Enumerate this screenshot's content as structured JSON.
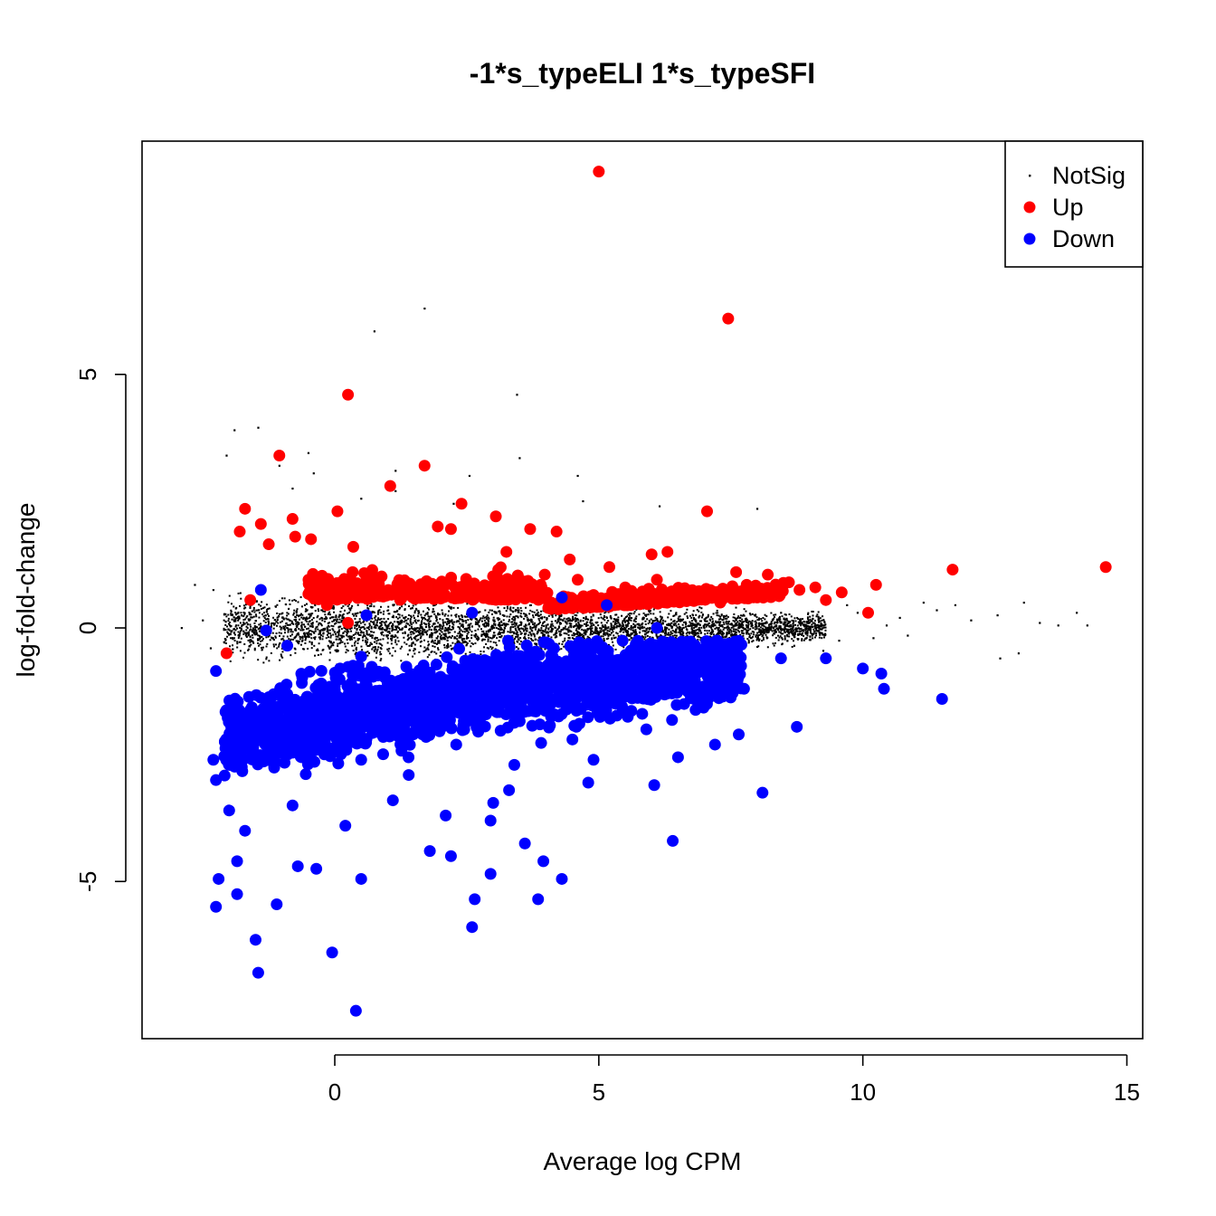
{
  "chart_data": {
    "type": "scatter",
    "title": "-1*s_typeELI 1*s_typeSFI",
    "xlabel": "Average log CPM",
    "ylabel": "log-fold-change",
    "xlim": [
      -3.65,
      15.3
    ],
    "ylim": [
      -8.1,
      9.6
    ],
    "x_ticks": [
      0,
      5,
      10,
      15
    ],
    "y_ticks": [
      -5,
      0,
      5
    ],
    "x_tick_labels": [
      "0",
      "5",
      "10",
      "15"
    ],
    "y_tick_labels": [
      "-5",
      "0",
      "5"
    ],
    "legend_position": "top-right",
    "series": [
      {
        "name": "NotSig",
        "color": "#000000",
        "marker": "small-dot",
        "points": [
          [
            1.7,
            6.3
          ],
          [
            0.75,
            5.85
          ],
          [
            3.45,
            4.6
          ],
          [
            -1.9,
            3.9
          ],
          [
            -1.45,
            3.95
          ],
          [
            -2.05,
            3.4
          ],
          [
            -0.5,
            3.45
          ],
          [
            3.5,
            3.35
          ],
          [
            -1.05,
            3.2
          ],
          [
            -0.4,
            3.05
          ],
          [
            1.15,
            3.1
          ],
          [
            2.55,
            3.0
          ],
          [
            4.6,
            3.0
          ],
          [
            -0.8,
            2.75
          ],
          [
            1.15,
            2.7
          ],
          [
            0.5,
            2.55
          ],
          [
            2.25,
            2.45
          ],
          [
            4.7,
            2.5
          ],
          [
            6.15,
            2.4
          ],
          [
            8.0,
            2.35
          ],
          [
            -2.9,
            0.0
          ],
          [
            -2.65,
            0.85
          ],
          [
            -2.3,
            0.75
          ],
          [
            -2.5,
            0.15
          ],
          [
            -2.35,
            -0.4
          ],
          [
            12.6,
            -0.6
          ],
          [
            12.95,
            -0.5
          ],
          [
            13.05,
            0.5
          ],
          [
            13.35,
            0.1
          ],
          [
            13.7,
            0.05
          ],
          [
            14.05,
            0.3
          ],
          [
            14.25,
            0.05
          ],
          [
            12.55,
            0.25
          ],
          [
            12.05,
            0.15
          ],
          [
            11.75,
            0.45
          ],
          [
            11.4,
            0.35
          ],
          [
            11.15,
            0.5
          ],
          [
            10.7,
            0.2
          ],
          [
            10.85,
            -0.15
          ],
          [
            10.45,
            0.05
          ],
          [
            10.2,
            -0.2
          ],
          [
            9.9,
            0.3
          ],
          [
            9.55,
            -0.25
          ],
          [
            9.7,
            0.45
          ],
          [
            9.25,
            -0.45
          ],
          [
            8.95,
            0.1
          ],
          [
            8.7,
            -0.35
          ],
          [
            8.45,
            0.3
          ],
          [
            8.2,
            -0.05
          ],
          [
            7.95,
            0.25
          ]
        ]
      },
      {
        "name": "Up",
        "color": "#ff0000",
        "marker": "filled-circle",
        "points": [
          [
            5.0,
            9.0
          ],
          [
            7.45,
            6.1
          ],
          [
            0.25,
            4.6
          ],
          [
            -1.05,
            3.4
          ],
          [
            1.7,
            3.2
          ],
          [
            1.05,
            2.8
          ],
          [
            2.4,
            2.45
          ],
          [
            0.05,
            2.3
          ],
          [
            -1.7,
            2.35
          ],
          [
            7.05,
            2.3
          ],
          [
            -1.4,
            2.05
          ],
          [
            -0.8,
            2.15
          ],
          [
            3.05,
            2.2
          ],
          [
            1.95,
            2.0
          ],
          [
            2.2,
            1.95
          ],
          [
            3.7,
            1.95
          ],
          [
            -1.8,
            1.9
          ],
          [
            4.2,
            1.9
          ],
          [
            -0.45,
            1.75
          ],
          [
            -0.75,
            1.8
          ],
          [
            -1.25,
            1.65
          ],
          [
            0.35,
            1.6
          ],
          [
            3.25,
            1.5
          ],
          [
            6.0,
            1.45
          ],
          [
            6.3,
            1.5
          ],
          [
            4.45,
            1.35
          ],
          [
            5.2,
            1.2
          ],
          [
            11.7,
            1.15
          ],
          [
            14.6,
            1.2
          ],
          [
            10.25,
            0.85
          ],
          [
            9.6,
            0.7
          ],
          [
            9.1,
            0.8
          ],
          [
            8.6,
            0.9
          ],
          [
            8.2,
            1.05
          ],
          [
            7.6,
            1.1
          ],
          [
            -2.05,
            -0.5
          ],
          [
            10.1,
            0.3
          ],
          [
            9.3,
            0.55
          ],
          [
            8.8,
            0.75
          ],
          [
            0.25,
            0.1
          ],
          [
            -1.6,
            0.55
          ],
          [
            6.85,
            0.7
          ],
          [
            6.45,
            0.6
          ],
          [
            5.8,
            0.55
          ],
          [
            5.5,
            0.8
          ],
          [
            4.9,
            0.65
          ],
          [
            4.6,
            0.95
          ],
          [
            3.9,
            0.85
          ],
          [
            3.1,
            0.95
          ],
          [
            2.5,
            0.75
          ],
          [
            1.85,
            0.6
          ],
          [
            1.3,
            0.85
          ],
          [
            0.7,
            0.95
          ],
          [
            -0.15,
            0.45
          ],
          [
            7.3,
            0.5
          ],
          [
            8.0,
            0.6
          ],
          [
            7.8,
            0.85
          ],
          [
            6.1,
            0.95
          ],
          [
            5.3,
            0.45
          ],
          [
            4.1,
            0.5
          ]
        ]
      },
      {
        "name": "Down",
        "color": "#0000ff",
        "marker": "filled-circle",
        "points": [
          [
            0.4,
            -7.55
          ],
          [
            -1.45,
            -6.8
          ],
          [
            -0.05,
            -6.4
          ],
          [
            -1.5,
            -6.15
          ],
          [
            -2.25,
            -5.5
          ],
          [
            -1.1,
            -5.45
          ],
          [
            2.6,
            -5.9
          ],
          [
            2.65,
            -5.35
          ],
          [
            3.85,
            -5.35
          ],
          [
            -2.2,
            -4.95
          ],
          [
            -1.85,
            -5.25
          ],
          [
            2.95,
            -4.85
          ],
          [
            0.5,
            -4.95
          ],
          [
            4.3,
            -4.95
          ],
          [
            -0.7,
            -4.7
          ],
          [
            -0.35,
            -4.75
          ],
          [
            6.4,
            -4.2
          ],
          [
            8.1,
            -3.25
          ],
          [
            8.75,
            -1.95
          ],
          [
            11.5,
            -1.4
          ],
          [
            10.4,
            -1.2
          ],
          [
            10.35,
            -0.9
          ],
          [
            10.0,
            -0.8
          ],
          [
            9.3,
            -0.6
          ],
          [
            8.45,
            -0.6
          ],
          [
            7.75,
            -1.2
          ],
          [
            7.65,
            -2.1
          ],
          [
            7.2,
            -2.3
          ],
          [
            6.5,
            -2.55
          ],
          [
            6.05,
            -3.1
          ],
          [
            4.8,
            -3.05
          ],
          [
            3.0,
            -3.45
          ],
          [
            2.95,
            -3.8
          ],
          [
            -2.3,
            -2.6
          ],
          [
            -2.25,
            -3.0
          ],
          [
            -2.0,
            -3.6
          ],
          [
            -1.7,
            -4.0
          ],
          [
            -1.85,
            -4.6
          ],
          [
            1.8,
            -4.4
          ],
          [
            2.2,
            -4.5
          ],
          [
            3.6,
            -4.25
          ],
          [
            3.95,
            -4.6
          ],
          [
            5.1,
            -1.45
          ],
          [
            4.3,
            0.6
          ],
          [
            5.15,
            0.45
          ],
          [
            6.1,
            0.0
          ],
          [
            2.6,
            0.3
          ],
          [
            -1.4,
            0.75
          ],
          [
            -1.3,
            -0.05
          ],
          [
            0.6,
            0.25
          ],
          [
            -2.25,
            -0.85
          ],
          [
            -0.9,
            -0.35
          ],
          [
            0.1,
            -0.8
          ],
          [
            1.0,
            -1.1
          ],
          [
            2.0,
            -1.2
          ],
          [
            3.1,
            -1.5
          ],
          [
            4.0,
            -1.3
          ],
          [
            5.5,
            -1.1
          ],
          [
            6.8,
            -1.4
          ],
          [
            7.5,
            -0.9
          ],
          [
            -1.9,
            -1.9
          ],
          [
            -1.2,
            -2.5
          ],
          [
            -0.3,
            -2.2
          ],
          [
            0.5,
            -2.6
          ],
          [
            1.4,
            -2.9
          ],
          [
            2.3,
            -2.3
          ],
          [
            3.4,
            -2.7
          ],
          [
            4.5,
            -2.2
          ],
          [
            5.9,
            -2.0
          ],
          [
            -0.8,
            -3.5
          ],
          [
            0.2,
            -3.9
          ],
          [
            1.1,
            -3.4
          ],
          [
            2.1,
            -3.7
          ],
          [
            3.3,
            -3.2
          ],
          [
            4.9,
            -2.6
          ]
        ]
      }
    ]
  }
}
